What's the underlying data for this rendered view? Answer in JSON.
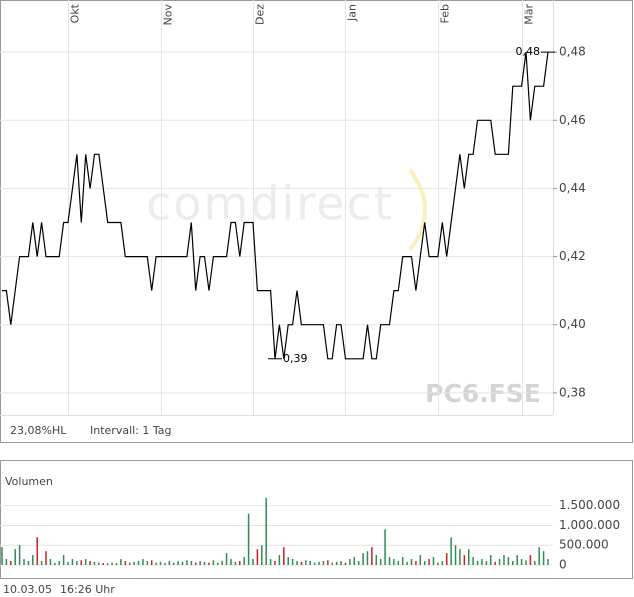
{
  "chart_data": [
    {
      "type": "line",
      "watermark": "comdirect",
      "symbol": "PC6.FSE",
      "range_label": "23,08%HL",
      "interval_label": "Intervall: 1 Tag",
      "max_label": "0,48",
      "min_label": "0,39",
      "categories": [
        null,
        null,
        null,
        null,
        null,
        null,
        null,
        null,
        null,
        null,
        null,
        null,
        null,
        null,
        null,
        "Okt",
        null,
        null,
        null,
        null,
        null,
        null,
        null,
        null,
        null,
        null,
        null,
        null,
        null,
        null,
        null,
        null,
        null,
        null,
        null,
        null,
        "Nov",
        null,
        null,
        null,
        null,
        null,
        null,
        null,
        null,
        null,
        null,
        null,
        null,
        null,
        null,
        null,
        null,
        null,
        null,
        null,
        null,
        "Dez",
        null,
        null,
        null,
        null,
        null,
        null,
        null,
        null,
        null,
        null,
        null,
        null,
        null,
        null,
        null,
        null,
        null,
        null,
        null,
        null,
        "Jan",
        null,
        null,
        null,
        null,
        null,
        null,
        null,
        null,
        null,
        null,
        null,
        null,
        null,
        null,
        null,
        null,
        null,
        null,
        null,
        null,
        "Feb",
        null,
        null,
        null,
        null,
        null,
        null,
        null,
        null,
        null,
        null,
        null,
        null,
        null,
        null,
        null,
        null,
        null,
        null,
        "Mär",
        null,
        null,
        null,
        null,
        null,
        null
      ],
      "series": [
        {
          "color": "#000000",
          "values": [
            0.41,
            0.41,
            0.4,
            0.41,
            0.42,
            0.42,
            0.42,
            0.43,
            0.42,
            0.43,
            0.42,
            0.42,
            0.42,
            0.42,
            0.43,
            0.43,
            0.44,
            0.45,
            0.43,
            0.45,
            0.44,
            0.45,
            0.45,
            0.44,
            0.43,
            0.43,
            0.43,
            0.43,
            0.42,
            0.42,
            0.42,
            0.42,
            0.42,
            0.42,
            0.41,
            0.42,
            0.42,
            0.42,
            0.42,
            0.42,
            0.42,
            0.42,
            0.42,
            0.43,
            0.41,
            0.42,
            0.42,
            0.41,
            0.42,
            0.42,
            0.42,
            0.42,
            0.43,
            0.43,
            0.42,
            0.43,
            0.43,
            0.43,
            0.41,
            0.41,
            0.41,
            0.41,
            0.39,
            0.4,
            0.39,
            0.4,
            0.4,
            0.41,
            0.4,
            0.4,
            0.4,
            0.4,
            0.4,
            0.4,
            0.39,
            0.39,
            0.4,
            0.4,
            0.39,
            0.39,
            0.39,
            0.39,
            0.39,
            0.4,
            0.39,
            0.39,
            0.4,
            0.4,
            0.4,
            0.41,
            0.41,
            0.42,
            0.42,
            0.42,
            0.41,
            0.42,
            0.43,
            0.42,
            0.42,
            0.42,
            0.43,
            0.42,
            0.43,
            0.44,
            0.45,
            0.44,
            0.45,
            0.45,
            0.46,
            0.46,
            0.46,
            0.46,
            0.45,
            0.45,
            0.45,
            0.45,
            0.47,
            0.47,
            0.47,
            0.48,
            0.46,
            0.47,
            0.47,
            0.47,
            0.48
          ]
        }
      ],
      "ylim": [
        0.3735,
        0.4953
      ],
      "yticks": [
        {
          "value": 0.38,
          "label": "0,38"
        },
        {
          "value": 0.4,
          "label": "0,40"
        },
        {
          "value": 0.42,
          "label": "0,42"
        },
        {
          "value": 0.44,
          "label": "0,44"
        },
        {
          "value": 0.46,
          "label": "0,46"
        },
        {
          "value": 0.48,
          "label": "0,48"
        }
      ],
      "grid": true
    },
    {
      "type": "bar",
      "title": "Volumen",
      "up_color": "#2e8b57",
      "down_color": "#cc2222",
      "values": [
        450000,
        150000,
        100000,
        400000,
        500000,
        150000,
        100000,
        250000,
        700000,
        100000,
        350000,
        150000,
        50000,
        100000,
        250000,
        80000,
        150000,
        100000,
        120000,
        150000,
        100000,
        80000,
        60000,
        50000,
        40000,
        60000,
        50000,
        150000,
        100000,
        60000,
        80000,
        100000,
        150000,
        100000,
        120000,
        60000,
        80000,
        50000,
        100000,
        60000,
        100000,
        80000,
        120000,
        100000,
        60000,
        100000,
        80000,
        60000,
        120000,
        60000,
        100000,
        300000,
        150000,
        80000,
        100000,
        200000,
        1300000,
        150000,
        400000,
        500000,
        1700000,
        150000,
        100000,
        250000,
        450000,
        200000,
        150000,
        100000,
        80000,
        120000,
        100000,
        60000,
        80000,
        100000,
        120000,
        60000,
        80000,
        100000,
        60000,
        150000,
        200000,
        100000,
        300000,
        350000,
        450000,
        250000,
        150000,
        900000,
        200000,
        150000,
        100000,
        200000,
        80000,
        150000,
        100000,
        250000,
        100000,
        150000,
        200000,
        60000,
        100000,
        300000,
        700000,
        500000,
        400000,
        250000,
        400000,
        200000,
        100000,
        150000,
        100000,
        250000,
        80000,
        150000,
        250000,
        200000,
        100000,
        250000,
        150000,
        120000,
        250000,
        100000,
        450000,
        350000,
        150000
      ],
      "ylim": [
        0,
        1770000
      ],
      "yticks": [
        0,
        {
          "value": 500000,
          "label": "500.000"
        },
        {
          "value": 1000000,
          "label": "1.000.000"
        },
        {
          "value": 1500000,
          "label": "1.500.000"
        }
      ],
      "grid": true
    }
  ],
  "footer": {
    "date": "10.03.05",
    "time": "16:26 Uhr"
  }
}
